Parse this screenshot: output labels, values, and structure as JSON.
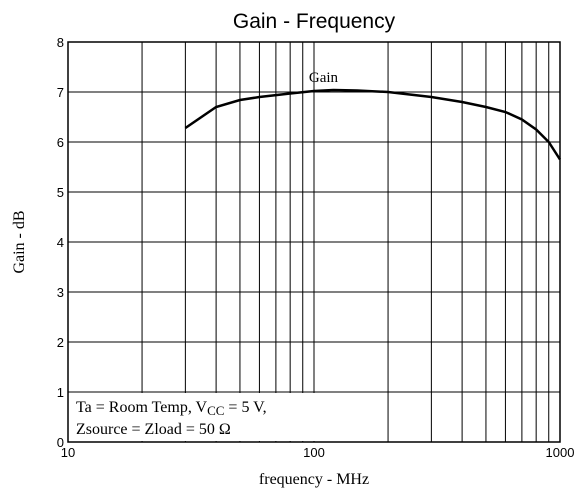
{
  "chart_data": {
    "type": "line",
    "title": "Gain - Frequency",
    "x_label": "frequency - MHz",
    "y_label": "Gain - dB",
    "log_x": true,
    "grid": true,
    "xlim": [
      10,
      1000
    ],
    "xticks": [
      10,
      100,
      1000
    ],
    "xminor": [
      20,
      30,
      40,
      50,
      60,
      70,
      80,
      90,
      200,
      300,
      400,
      500,
      600,
      700,
      800,
      900
    ],
    "ylim": [
      0,
      8
    ],
    "yticks": [
      0,
      1,
      2,
      3,
      4,
      5,
      6,
      7,
      8
    ],
    "series": [
      {
        "name": "Gain",
        "color": "#000000",
        "x": [
          30,
          40,
          50,
          60,
          80,
          100,
          120,
          150,
          200,
          300,
          400,
          500,
          600,
          700,
          800,
          900,
          1000
        ],
        "values": [
          6.28,
          6.7,
          6.84,
          6.9,
          6.97,
          7.02,
          7.04,
          7.03,
          7.0,
          6.9,
          6.8,
          6.7,
          6.6,
          6.45,
          6.25,
          6.0,
          5.65
        ]
      }
    ],
    "annotation": {
      "line1_a": "Ta = Room Temp, V",
      "line1_sub": "CC",
      "line1_b": " = 5 V,",
      "line2": "Zsource = Zload = 50 Ω"
    }
  }
}
